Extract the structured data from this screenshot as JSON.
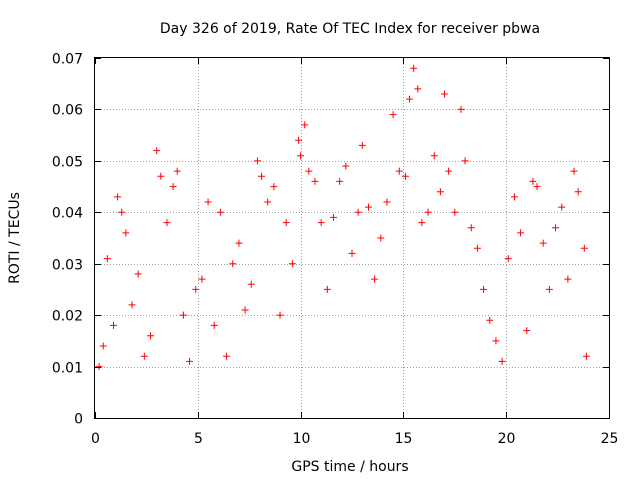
{
  "chart_data": {
    "type": "scatter",
    "title": "Day 326 of 2019, Rate Of TEC Index for receiver pbwa",
    "xlabel": "GPS time / hours",
    "ylabel": "ROTI / TECUs",
    "xlim": [
      0,
      25
    ],
    "ylim": [
      0,
      0.07
    ],
    "x_ticks": [
      "0",
      "5",
      "10",
      "15",
      "20",
      "25"
    ],
    "y_ticks": [
      "0",
      "0.01",
      "0.02",
      "0.03",
      "0.04",
      "0.05",
      "0.06",
      "0.07"
    ],
    "grid": true,
    "legend": "none",
    "marker": "+",
    "series": [
      {
        "color": "#ff0000",
        "points": [
          [
            0.2,
            0.01
          ],
          [
            0.4,
            0.014
          ],
          [
            0.6,
            0.031
          ],
          [
            0.9,
            0.018
          ],
          [
            1.1,
            0.043
          ],
          [
            1.3,
            0.04
          ],
          [
            1.5,
            0.036
          ],
          [
            1.8,
            0.022
          ],
          [
            2.1,
            0.028
          ],
          [
            2.4,
            0.012
          ],
          [
            2.7,
            0.016
          ],
          [
            3.0,
            0.052
          ],
          [
            3.2,
            0.047
          ],
          [
            3.5,
            0.038
          ],
          [
            3.8,
            0.045
          ],
          [
            4.0,
            0.048
          ],
          [
            4.3,
            0.02
          ],
          [
            4.6,
            0.011
          ],
          [
            4.9,
            0.025
          ],
          [
            5.2,
            0.027
          ],
          [
            5.5,
            0.042
          ],
          [
            5.8,
            0.018
          ],
          [
            6.1,
            0.04
          ],
          [
            6.4,
            0.012
          ],
          [
            6.7,
            0.03
          ],
          [
            7.0,
            0.034
          ],
          [
            7.3,
            0.021
          ],
          [
            7.6,
            0.026
          ],
          [
            7.9,
            0.05
          ],
          [
            8.1,
            0.047
          ],
          [
            8.4,
            0.042
          ],
          [
            8.7,
            0.045
          ],
          [
            9.0,
            0.02
          ],
          [
            9.3,
            0.038
          ],
          [
            9.6,
            0.03
          ],
          [
            9.9,
            0.054
          ],
          [
            10.0,
            0.051
          ],
          [
            10.2,
            0.057
          ],
          [
            10.4,
            0.048
          ],
          [
            10.7,
            0.046
          ],
          [
            11.0,
            0.038
          ],
          [
            11.3,
            0.025
          ],
          [
            11.6,
            0.039
          ],
          [
            11.9,
            0.046
          ],
          [
            12.2,
            0.049
          ],
          [
            12.5,
            0.032
          ],
          [
            12.8,
            0.04
          ],
          [
            13.0,
            0.053
          ],
          [
            13.3,
            0.041
          ],
          [
            13.6,
            0.027
          ],
          [
            13.9,
            0.035
          ],
          [
            14.2,
            0.042
          ],
          [
            14.5,
            0.059
          ],
          [
            14.8,
            0.048
          ],
          [
            15.1,
            0.047
          ],
          [
            15.3,
            0.062
          ],
          [
            15.5,
            0.068
          ],
          [
            15.7,
            0.064
          ],
          [
            15.9,
            0.038
          ],
          [
            16.2,
            0.04
          ],
          [
            16.5,
            0.051
          ],
          [
            16.8,
            0.044
          ],
          [
            17.0,
            0.063
          ],
          [
            17.2,
            0.048
          ],
          [
            17.5,
            0.04
          ],
          [
            17.8,
            0.06
          ],
          [
            18.0,
            0.05
          ],
          [
            18.3,
            0.037
          ],
          [
            18.6,
            0.033
          ],
          [
            18.9,
            0.025
          ],
          [
            19.2,
            0.019
          ],
          [
            19.5,
            0.015
          ],
          [
            19.8,
            0.011
          ],
          [
            20.1,
            0.031
          ],
          [
            20.4,
            0.043
          ],
          [
            20.7,
            0.036
          ],
          [
            21.0,
            0.017
          ],
          [
            21.3,
            0.046
          ],
          [
            21.5,
            0.045
          ],
          [
            21.8,
            0.034
          ],
          [
            22.1,
            0.025
          ],
          [
            22.4,
            0.037
          ],
          [
            22.7,
            0.041
          ],
          [
            23.0,
            0.027
          ],
          [
            23.3,
            0.048
          ],
          [
            23.5,
            0.044
          ],
          [
            23.8,
            0.033
          ],
          [
            23.9,
            0.012
          ]
        ]
      }
    ]
  }
}
